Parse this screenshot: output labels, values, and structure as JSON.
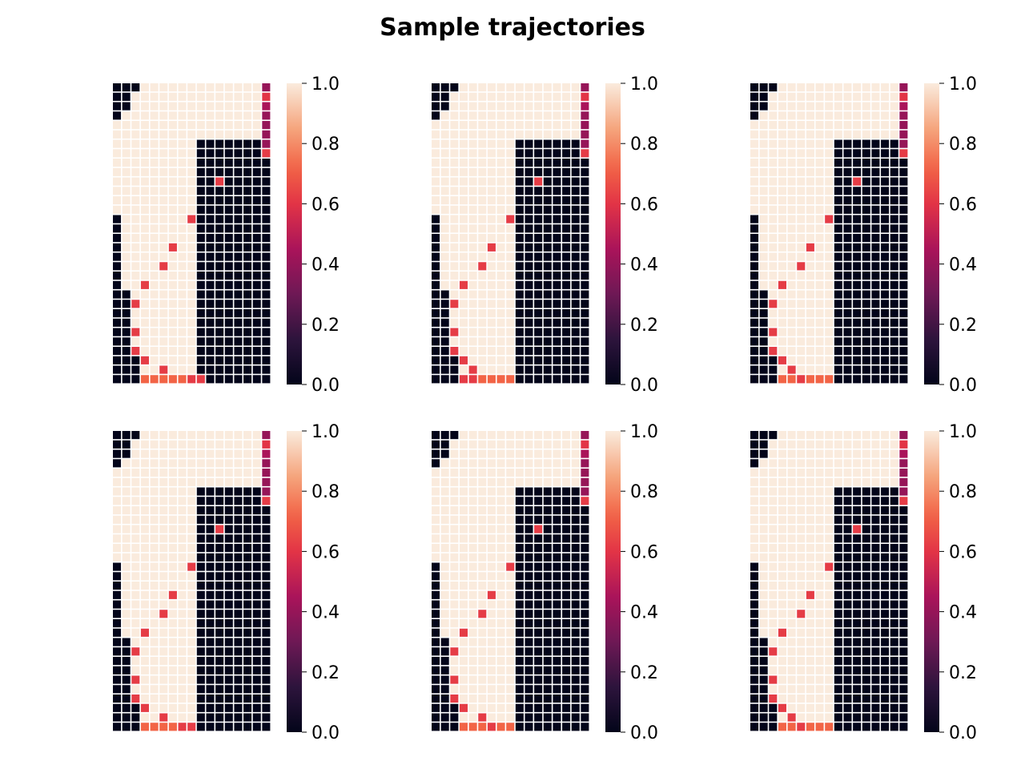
{
  "chart_data": {
    "type": "heatmap",
    "title": "Sample trajectories",
    "grid": {
      "rows": 32,
      "cols": 17
    },
    "colormap": "rocket",
    "colorbar": {
      "min": 0.0,
      "max": 1.0,
      "ticks": [
        "0.0",
        "0.2",
        "0.4",
        "0.6",
        "0.8",
        "1.0"
      ]
    },
    "value_legend": {
      "wall": 0.0,
      "open": 1.0,
      "path": 0.65,
      "end_segment": 0.75,
      "goal_column": 0.5
    },
    "panels": [
      {
        "name": "",
        "grid": {
          "cols_left_wall_rows_by_col": [],
          "note": ""
        },
        "path": [
          [
            31,
            3
          ],
          [
            31,
            4
          ],
          [
            31,
            5
          ],
          [
            31,
            6
          ],
          [
            31,
            7
          ],
          [
            31,
            8
          ],
          [
            31,
            9
          ],
          [
            30,
            5
          ],
          [
            29,
            3
          ],
          [
            28,
            2
          ],
          [
            26,
            2
          ],
          [
            23,
            2
          ],
          [
            21,
            3
          ],
          [
            19,
            5
          ],
          [
            17,
            6
          ],
          [
            14,
            8
          ],
          [
            10,
            11
          ],
          [
            7,
            16
          ],
          [
            6,
            16
          ],
          [
            5,
            16
          ],
          [
            4,
            16
          ],
          [
            3,
            16
          ],
          [
            2,
            16
          ],
          [
            1,
            16
          ],
          [
            0,
            16
          ]
        ],
        "path_values": [
          0.72,
          0.72,
          0.72,
          0.72,
          0.72,
          0.62,
          0.62,
          0.62,
          0.62,
          0.62,
          0.62,
          0.62,
          0.62,
          0.62,
          0.62,
          0.62,
          0.62,
          0.62,
          0.4,
          0.4,
          0.4,
          0.4,
          0.45,
          0.6,
          0.4
        ]
      },
      {
        "name": "",
        "path": [
          [
            31,
            3
          ],
          [
            31,
            4
          ],
          [
            31,
            5
          ],
          [
            31,
            6
          ],
          [
            31,
            7
          ],
          [
            31,
            8
          ],
          [
            30,
            4
          ],
          [
            29,
            3
          ],
          [
            28,
            2
          ],
          [
            26,
            2
          ],
          [
            23,
            2
          ],
          [
            21,
            3
          ],
          [
            19,
            5
          ],
          [
            17,
            6
          ],
          [
            14,
            8
          ],
          [
            10,
            11
          ],
          [
            7,
            16
          ],
          [
            6,
            16
          ],
          [
            5,
            16
          ],
          [
            4,
            16
          ],
          [
            3,
            16
          ],
          [
            2,
            16
          ],
          [
            1,
            16
          ],
          [
            0,
            16
          ]
        ],
        "path_values": [
          0.62,
          0.62,
          0.72,
          0.72,
          0.72,
          0.72,
          0.62,
          0.62,
          0.62,
          0.62,
          0.62,
          0.62,
          0.62,
          0.62,
          0.62,
          0.62,
          0.62,
          0.4,
          0.4,
          0.4,
          0.4,
          0.45,
          0.6,
          0.4
        ]
      },
      {
        "name": "",
        "path": [
          [
            31,
            3
          ],
          [
            31,
            4
          ],
          [
            31,
            5
          ],
          [
            31,
            6
          ],
          [
            31,
            7
          ],
          [
            31,
            8
          ],
          [
            30,
            4
          ],
          [
            29,
            3
          ],
          [
            28,
            2
          ],
          [
            26,
            2
          ],
          [
            23,
            2
          ],
          [
            21,
            3
          ],
          [
            19,
            5
          ],
          [
            17,
            6
          ],
          [
            14,
            8
          ],
          [
            10,
            11
          ],
          [
            7,
            16
          ],
          [
            6,
            16
          ],
          [
            5,
            16
          ],
          [
            4,
            16
          ],
          [
            3,
            16
          ],
          [
            2,
            16
          ],
          [
            1,
            16
          ],
          [
            0,
            16
          ]
        ],
        "path_values": [
          0.72,
          0.72,
          0.62,
          0.72,
          0.72,
          0.72,
          0.62,
          0.62,
          0.62,
          0.62,
          0.62,
          0.62,
          0.62,
          0.62,
          0.62,
          0.62,
          0.62,
          0.4,
          0.4,
          0.4,
          0.4,
          0.45,
          0.6,
          0.4
        ]
      },
      {
        "name": "",
        "path": [
          [
            31,
            3
          ],
          [
            31,
            4
          ],
          [
            31,
            5
          ],
          [
            31,
            6
          ],
          [
            31,
            7
          ],
          [
            31,
            8
          ],
          [
            30,
            5
          ],
          [
            29,
            3
          ],
          [
            28,
            2
          ],
          [
            26,
            2
          ],
          [
            23,
            2
          ],
          [
            21,
            3
          ],
          [
            19,
            5
          ],
          [
            17,
            6
          ],
          [
            14,
            8
          ],
          [
            10,
            11
          ],
          [
            7,
            16
          ],
          [
            6,
            16
          ],
          [
            5,
            16
          ],
          [
            4,
            16
          ],
          [
            3,
            16
          ],
          [
            2,
            16
          ],
          [
            1,
            16
          ],
          [
            0,
            16
          ]
        ],
        "path_values": [
          0.72,
          0.72,
          0.72,
          0.72,
          0.62,
          0.62,
          0.62,
          0.62,
          0.62,
          0.62,
          0.62,
          0.62,
          0.62,
          0.62,
          0.62,
          0.62,
          0.62,
          0.4,
          0.4,
          0.4,
          0.4,
          0.45,
          0.6,
          0.4
        ]
      },
      {
        "name": "",
        "path": [
          [
            31,
            3
          ],
          [
            31,
            4
          ],
          [
            31,
            5
          ],
          [
            31,
            6
          ],
          [
            31,
            7
          ],
          [
            31,
            8
          ],
          [
            30,
            5
          ],
          [
            29,
            3
          ],
          [
            28,
            2
          ],
          [
            26,
            2
          ],
          [
            23,
            2
          ],
          [
            21,
            3
          ],
          [
            19,
            5
          ],
          [
            17,
            6
          ],
          [
            14,
            8
          ],
          [
            10,
            11
          ],
          [
            7,
            16
          ],
          [
            6,
            16
          ],
          [
            5,
            16
          ],
          [
            4,
            16
          ],
          [
            3,
            16
          ],
          [
            2,
            16
          ],
          [
            1,
            16
          ],
          [
            0,
            16
          ]
        ],
        "path_values": [
          0.72,
          0.72,
          0.72,
          0.62,
          0.72,
          0.72,
          0.62,
          0.62,
          0.62,
          0.62,
          0.62,
          0.62,
          0.62,
          0.62,
          0.62,
          0.62,
          0.62,
          0.4,
          0.4,
          0.4,
          0.4,
          0.45,
          0.6,
          0.4
        ]
      },
      {
        "name": "",
        "path": [
          [
            31,
            3
          ],
          [
            31,
            4
          ],
          [
            31,
            5
          ],
          [
            31,
            6
          ],
          [
            31,
            7
          ],
          [
            31,
            8
          ],
          [
            30,
            4
          ],
          [
            29,
            3
          ],
          [
            28,
            2
          ],
          [
            26,
            2
          ],
          [
            23,
            2
          ],
          [
            21,
            3
          ],
          [
            19,
            5
          ],
          [
            17,
            6
          ],
          [
            14,
            8
          ],
          [
            10,
            11
          ],
          [
            7,
            16
          ],
          [
            6,
            16
          ],
          [
            5,
            16
          ],
          [
            4,
            16
          ],
          [
            3,
            16
          ],
          [
            2,
            16
          ],
          [
            1,
            16
          ],
          [
            0,
            16
          ]
        ],
        "path_values": [
          0.72,
          0.72,
          0.62,
          0.72,
          0.72,
          0.72,
          0.62,
          0.62,
          0.62,
          0.62,
          0.62,
          0.62,
          0.62,
          0.62,
          0.62,
          0.62,
          0.62,
          0.4,
          0.4,
          0.4,
          0.4,
          0.45,
          0.6,
          0.4
        ]
      }
    ]
  }
}
